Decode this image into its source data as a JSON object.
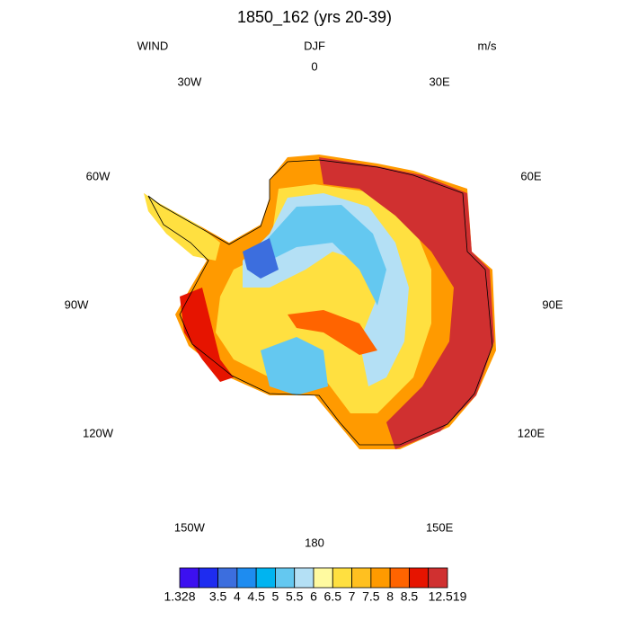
{
  "title": "1850_162 (yrs 20-39)",
  "left_label": "WIND",
  "center_label": "DJF",
  "right_label": "m/s",
  "longitude_labels": [
    "0",
    "30E",
    "60E",
    "90E",
    "120E",
    "150E",
    "180",
    "150W",
    "120W",
    "90W",
    "60W",
    "30W"
  ],
  "colorbar": {
    "labels": [
      1.328,
      3.5,
      4,
      4.5,
      5,
      5.5,
      6,
      6.5,
      7,
      7.5,
      8,
      8.5,
      12.519
    ],
    "colors": [
      "#3c10f0",
      "#1e2cf0",
      "#3c6ede",
      "#1e8cf0",
      "#00b4f0",
      "#64c8f0",
      "#b4e0f5",
      "#fffaa0",
      "#ffe040",
      "#ffc020",
      "#ff9a00",
      "#ff6400",
      "#e61400",
      "#d03030"
    ]
  }
}
